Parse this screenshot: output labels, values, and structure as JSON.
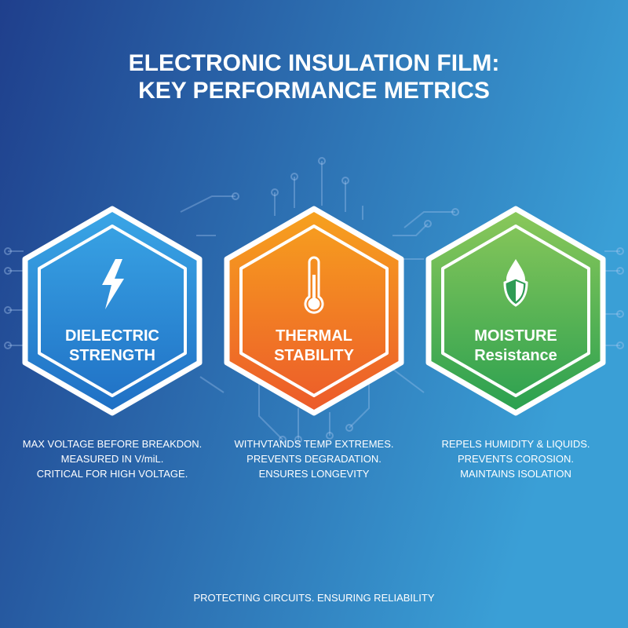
{
  "header": {
    "title_lines": [
      "ELECTRONIC INSULATION FILM:",
      "KEY PERFORMANCE METRICS"
    ]
  },
  "cards": [
    {
      "title_lines": [
        "DIELECTRIC",
        "STRENGTH"
      ],
      "description_lines": [
        "MAX VOLTAGE BEFORE BREAKDON.",
        "MEASURED IN V/miL.",
        "CRITICAL FOR HIGH VOLTAGE."
      ]
    },
    {
      "title_lines": [
        "THERMAL",
        "STABILITY"
      ],
      "description_lines": [
        "WITHVTANDS TEMP EXTREMES.",
        "PREVENTS DEGRADATION.",
        "ENSURES LONGEVITY"
      ]
    },
    {
      "title_lines": [
        "MOISTURE",
        "Resistance"
      ],
      "description_lines": [
        "REPELS HUMIDITY & LIQUIDS.",
        "PREVENTS COROSION.",
        "MAINTAINS ISOLATION"
      ]
    }
  ],
  "footer": {
    "text": "PROTECTING CIRCUITS. ENSURING RELIABILITY"
  }
}
